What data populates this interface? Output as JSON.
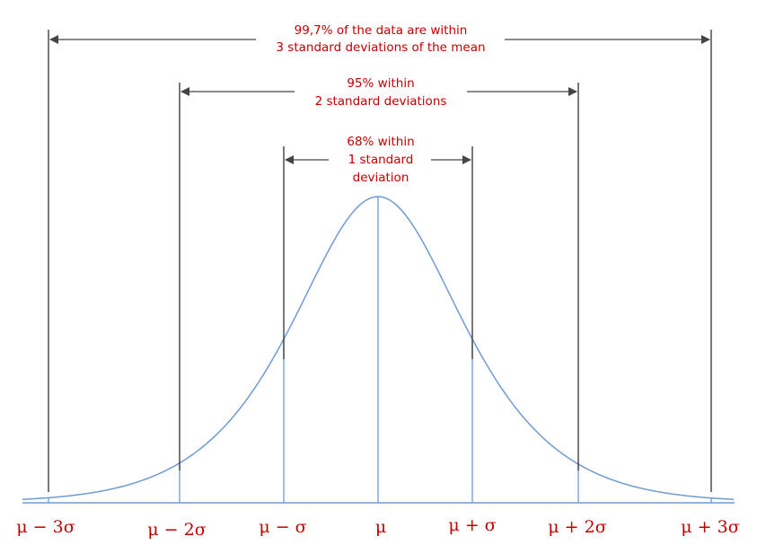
{
  "colors": {
    "curve": "#6f9bd3",
    "annotation_text": "#c00000",
    "boundary_line": "#333333",
    "arrow": "#444444",
    "tick_label": "#c00000",
    "background": "#ffffff"
  },
  "tick_labels": [
    "μ − 3σ",
    "μ − 2σ",
    "μ − σ",
    "μ",
    "μ + σ",
    "μ + 2σ",
    "μ + 3σ"
  ],
  "annotations": {
    "three_sigma": {
      "line1": "99,7% of the data are within",
      "line2": "3 standard deviations of the mean"
    },
    "two_sigma": {
      "line1": "95% within",
      "line2": "2 standard deviations"
    },
    "one_sigma": {
      "line1": "68% within",
      "line2": "1 standard",
      "line3": "deviation"
    }
  }
}
